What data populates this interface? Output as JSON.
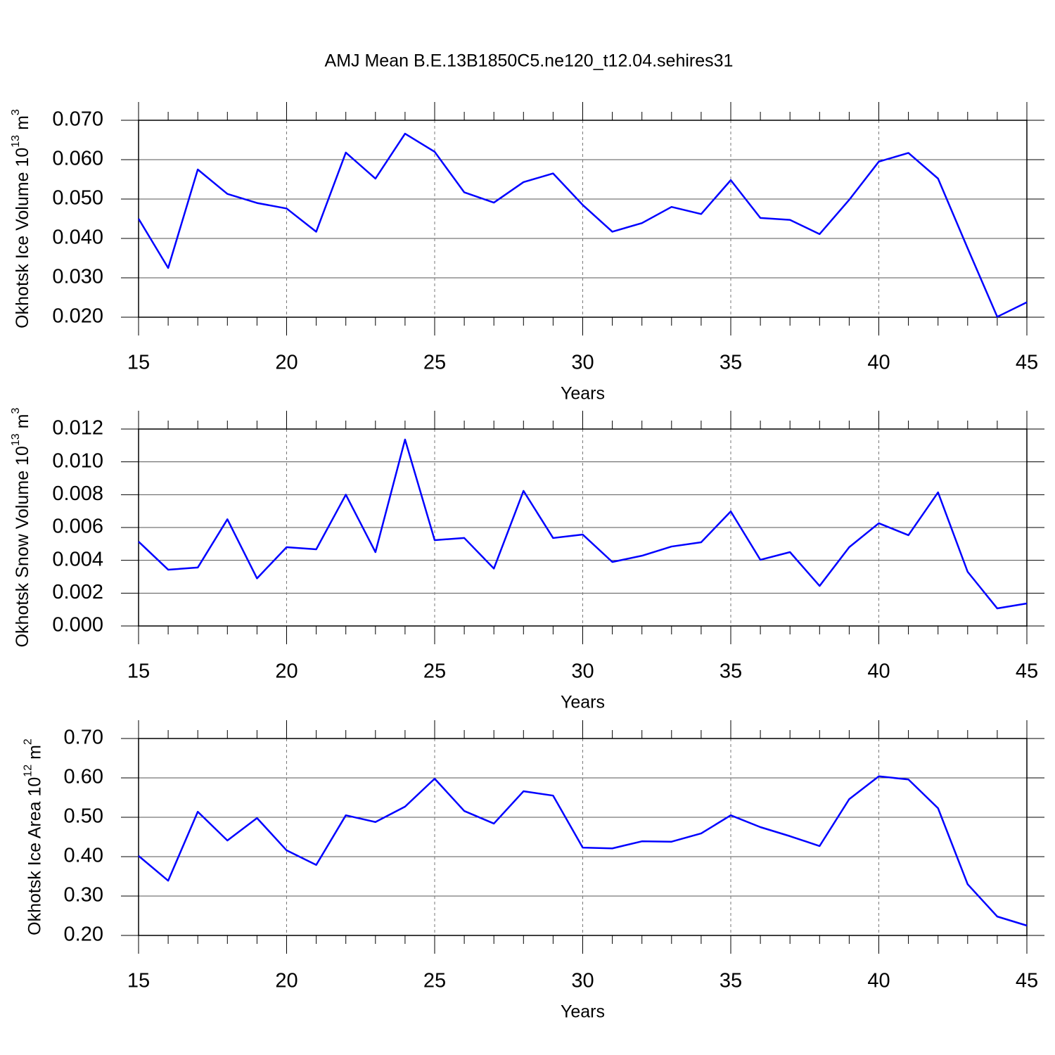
{
  "title": "AMJ Mean B.E.13B1850C5.ne120_t12.04.sehires31",
  "chart_data": [
    {
      "type": "line",
      "ylabel": {
        "text": "Okhotsk Ice Volume 10",
        "exponent": "13",
        "unit": "m",
        "unit_power": "3"
      },
      "xlabel": "Years",
      "x": [
        15,
        16,
        17,
        18,
        19,
        20,
        21,
        22,
        23,
        24,
        25,
        26,
        27,
        28,
        29,
        30,
        31,
        32,
        33,
        34,
        35,
        36,
        37,
        38,
        39,
        40,
        41,
        42,
        43,
        44,
        45
      ],
      "values": [
        0.045,
        0.0325,
        0.0575,
        0.0513,
        0.049,
        0.0476,
        0.0417,
        0.0618,
        0.0552,
        0.0666,
        0.062,
        0.0517,
        0.0491,
        0.0543,
        0.0565,
        0.0485,
        0.0417,
        0.0439,
        0.048,
        0.0462,
        0.0548,
        0.0452,
        0.0447,
        0.0411,
        0.0498,
        0.0595,
        0.0617,
        0.0552,
        0.0375,
        0.0201,
        0.0238
      ],
      "color": "#0000ff",
      "xlim": [
        15,
        45
      ],
      "xticks": [
        15,
        20,
        25,
        30,
        35,
        40,
        45
      ],
      "ylim": [
        0.02,
        0.07
      ],
      "yticks": [
        {
          "value": 0.02,
          "label": "0.020"
        },
        {
          "value": 0.03,
          "label": "0.030"
        },
        {
          "value": 0.04,
          "label": "0.040"
        },
        {
          "value": 0.05,
          "label": "0.050"
        },
        {
          "value": 0.06,
          "label": "0.060"
        },
        {
          "value": 0.07,
          "label": "0.070"
        }
      ],
      "grid": true
    },
    {
      "type": "line",
      "ylabel": {
        "text": "Okhotsk Snow Volume 10",
        "exponent": "13",
        "unit": "m",
        "unit_power": "3"
      },
      "xlabel": "Years",
      "x": [
        15,
        16,
        17,
        18,
        19,
        20,
        21,
        22,
        23,
        24,
        25,
        26,
        27,
        28,
        29,
        30,
        31,
        32,
        33,
        34,
        35,
        36,
        37,
        38,
        39,
        40,
        41,
        42,
        43,
        44,
        45
      ],
      "values": [
        0.00514,
        0.00343,
        0.00356,
        0.0065,
        0.0029,
        0.0048,
        0.00467,
        0.008,
        0.0045,
        0.01136,
        0.00523,
        0.00536,
        0.0035,
        0.00823,
        0.00536,
        0.00557,
        0.0039,
        0.00428,
        0.00484,
        0.0051,
        0.00698,
        0.00403,
        0.0045,
        0.00244,
        0.0048,
        0.00626,
        0.00553,
        0.00814,
        0.0033,
        0.00107,
        0.00137
      ],
      "color": "#0000ff",
      "xlim": [
        15,
        45
      ],
      "xticks": [
        15,
        20,
        25,
        30,
        35,
        40,
        45
      ],
      "ylim": [
        0,
        0.012
      ],
      "yticks": [
        {
          "value": 0,
          "label": "0.000"
        },
        {
          "value": 0.002,
          "label": "0.002"
        },
        {
          "value": 0.004,
          "label": "0.004"
        },
        {
          "value": 0.006,
          "label": "0.006"
        },
        {
          "value": 0.008,
          "label": "0.008"
        },
        {
          "value": 0.01,
          "label": "0.010"
        },
        {
          "value": 0.012,
          "label": "0.012"
        }
      ],
      "grid": true
    },
    {
      "type": "line",
      "ylabel": {
        "text": "Okhotsk Ice Area 10",
        "exponent": "12",
        "unit": "m",
        "unit_power": "2"
      },
      "xlabel": "Years",
      "x": [
        15,
        16,
        17,
        18,
        19,
        20,
        21,
        22,
        23,
        24,
        25,
        26,
        27,
        28,
        29,
        30,
        31,
        32,
        33,
        34,
        35,
        36,
        37,
        38,
        39,
        40,
        41,
        42,
        43,
        44,
        45
      ],
      "values": [
        0.402,
        0.339,
        0.514,
        0.441,
        0.498,
        0.416,
        0.379,
        0.505,
        0.488,
        0.527,
        0.598,
        0.516,
        0.484,
        0.566,
        0.555,
        0.423,
        0.421,
        0.439,
        0.438,
        0.459,
        0.505,
        0.475,
        0.452,
        0.427,
        0.546,
        0.604,
        0.596,
        0.523,
        0.33,
        0.248,
        0.225
      ],
      "color": "#0000ff",
      "xlim": [
        15,
        45
      ],
      "xticks": [
        15,
        20,
        25,
        30,
        35,
        40,
        45
      ],
      "ylim": [
        0.2,
        0.7
      ],
      "yticks": [
        {
          "value": 0.2,
          "label": "0.20"
        },
        {
          "value": 0.3,
          "label": "0.30"
        },
        {
          "value": 0.4,
          "label": "0.40"
        },
        {
          "value": 0.5,
          "label": "0.50"
        },
        {
          "value": 0.6,
          "label": "0.60"
        },
        {
          "value": 0.7,
          "label": "0.70"
        }
      ],
      "grid": true
    }
  ]
}
